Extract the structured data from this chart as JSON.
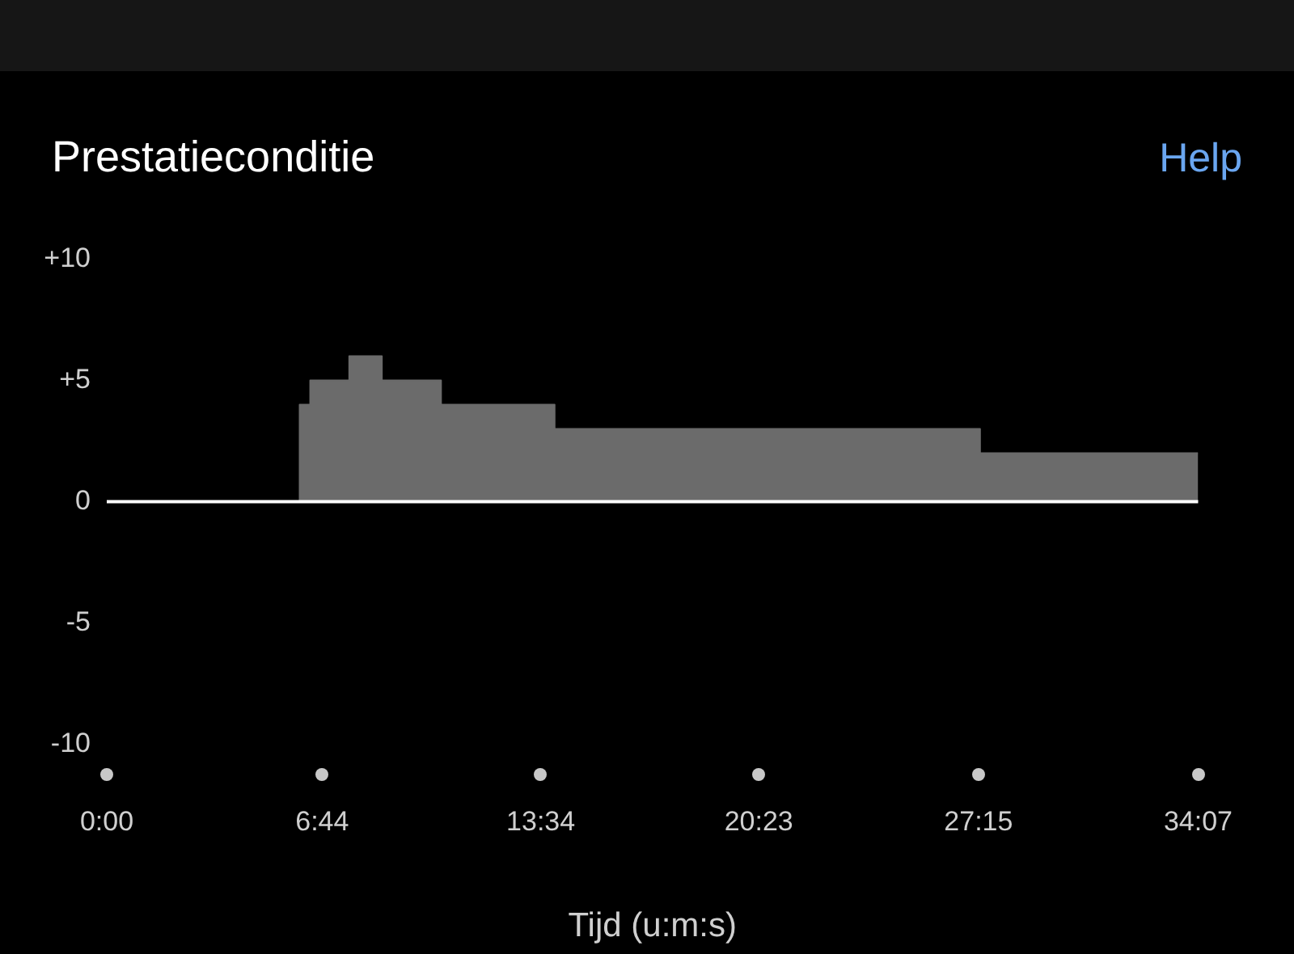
{
  "chart_data": {
    "type": "area",
    "title": "Prestatieconditie",
    "xlabel": "Tijd (u:m:s)",
    "annotations": [
      "Help"
    ],
    "x": [
      0,
      6.03,
      6.36,
      7.58,
      8.6,
      10.45,
      14.0,
      27.3,
      34.117
    ],
    "series": [
      {
        "color": "#6b6b6b",
        "values": [
          0,
          4,
          5,
          6,
          5,
          4,
          3,
          2,
          2
        ]
      }
    ],
    "xlim": [
      0,
      34.117
    ],
    "xticks": [
      {
        "value": 0,
        "label": "0:00"
      },
      {
        "value": 6.733,
        "label": "6:44"
      },
      {
        "value": 13.567,
        "label": "13:34"
      },
      {
        "value": 20.383,
        "label": "20:23"
      },
      {
        "value": 27.25,
        "label": "27:15"
      },
      {
        "value": 34.117,
        "label": "34:07"
      }
    ],
    "ylim": [
      -10,
      10
    ],
    "yticks": [
      {
        "value": -10,
        "label": "-10"
      },
      {
        "value": -5,
        "label": "-5"
      },
      {
        "value": 0,
        "label": "0"
      },
      {
        "value": 5,
        "label": "+5"
      },
      {
        "value": 10,
        "label": "+10"
      }
    ],
    "ref_lines": [
      {
        "axis": "y",
        "value": 0,
        "color": "#ffffff"
      }
    ],
    "line_style": "solid",
    "marker": "none",
    "legend": false
  }
}
